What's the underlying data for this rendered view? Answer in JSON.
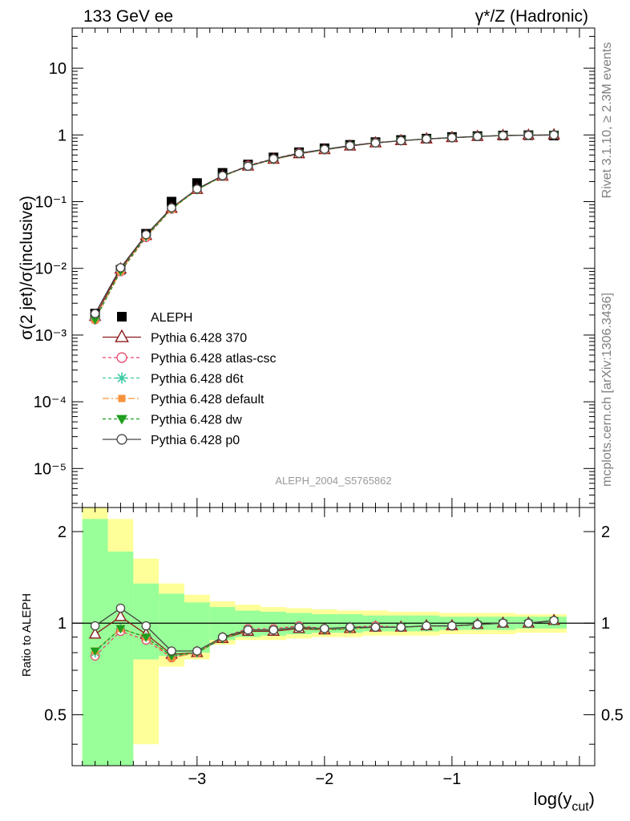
{
  "header": {
    "left": "133 GeV ee",
    "right": "γ*/Z (Hadronic)"
  },
  "side": {
    "top": "Rivet 3.1.10, ≥ 2.3M events",
    "bottom": "mcplots.cern.ch [arXiv:1306.3436]"
  },
  "watermark": "ALEPH_2004_S5765862",
  "chart_data": [
    {
      "type": "line",
      "ylabel": "σ(2 jet)/σ(inclusive)",
      "xlabel": "log(y_cut)",
      "xlim": [
        -3.98,
        0.12
      ],
      "ylim": [
        2.6e-06,
        40
      ],
      "yscale": "log",
      "ytick_labels": [
        "10",
        "1",
        "10⁻¹",
        "10⁻²",
        "10⁻³",
        "10⁻⁴",
        "10⁻⁵"
      ],
      "x": [
        -3.8,
        -3.6,
        -3.4,
        -3.2,
        -3.0,
        -2.8,
        -2.6,
        -2.4,
        -2.2,
        -2.0,
        -1.8,
        -1.6,
        -1.4,
        -1.2,
        -1.0,
        -0.8,
        -0.6,
        -0.4,
        -0.2
      ],
      "legend_position": "left-center",
      "series": [
        {
          "name": "ALEPH",
          "color": "#000000",
          "marker": "square",
          "values": [
            0.0021,
            0.0095,
            0.033,
            0.1,
            0.19,
            0.27,
            0.36,
            0.46,
            0.55,
            0.63,
            0.71,
            0.78,
            0.84,
            0.88,
            0.93,
            0.96,
            0.98,
            0.99,
            0.98
          ]
        },
        {
          "name": "Pythia 6.428 370",
          "color": "#8b1a1a",
          "marker": "triangle",
          "dash": "",
          "values": [
            0.0019,
            0.0098,
            0.031,
            0.079,
            0.152,
            0.24,
            0.34,
            0.43,
            0.52,
            0.6,
            0.68,
            0.76,
            0.82,
            0.87,
            0.91,
            0.95,
            0.98,
            0.99,
            1.0
          ]
        },
        {
          "name": "Pythia 6.428 atlas-csc",
          "color": "#e8476b",
          "marker": "circle-open",
          "dash": "4,3",
          "values": [
            0.0017,
            0.0089,
            0.029,
            0.077,
            0.153,
            0.24,
            0.35,
            0.44,
            0.54,
            0.6,
            0.69,
            0.77,
            0.82,
            0.87,
            0.91,
            0.95,
            0.98,
            0.99,
            1.0
          ]
        },
        {
          "name": "Pythia 6.428 d6t",
          "color": "#3cc9a3",
          "marker": "star",
          "dash": "4,3",
          "values": [
            0.0017,
            0.0091,
            0.03,
            0.078,
            0.152,
            0.24,
            0.34,
            0.43,
            0.53,
            0.6,
            0.69,
            0.76,
            0.82,
            0.87,
            0.91,
            0.95,
            0.98,
            0.99,
            1.0
          ]
        },
        {
          "name": "Pythia 6.428 default",
          "color": "#f7923a",
          "marker": "square-filled",
          "dash": "8,3,2,3",
          "values": [
            0.0017,
            0.0091,
            0.03,
            0.077,
            0.152,
            0.24,
            0.34,
            0.43,
            0.53,
            0.6,
            0.69,
            0.76,
            0.82,
            0.87,
            0.91,
            0.95,
            0.98,
            0.99,
            1.0
          ]
        },
        {
          "name": "Pythia 6.428 dw",
          "color": "#1f9e1f",
          "marker": "triangle-down",
          "dash": "4,3",
          "values": [
            0.0017,
            0.0091,
            0.03,
            0.078,
            0.151,
            0.24,
            0.34,
            0.43,
            0.53,
            0.6,
            0.69,
            0.76,
            0.82,
            0.87,
            0.91,
            0.95,
            0.98,
            0.99,
            1.0
          ]
        },
        {
          "name": "Pythia 6.428 p0",
          "color": "#444444",
          "marker": "circle-open",
          "dash": "",
          "values": [
            0.0021,
            0.0102,
            0.032,
            0.081,
            0.155,
            0.245,
            0.34,
            0.44,
            0.53,
            0.61,
            0.69,
            0.76,
            0.82,
            0.87,
            0.91,
            0.95,
            0.98,
            0.99,
            1.0
          ]
        }
      ]
    },
    {
      "type": "line",
      "ylabel": "Ratio to ALEPH",
      "xlabel": "log(y_cut)",
      "xlim": [
        -3.98,
        0.12
      ],
      "ylim": [
        0.34,
        2.4
      ],
      "yscale": "log",
      "yticks": [
        0.5,
        1,
        2
      ],
      "ytick_labels": [
        "0.5",
        "1",
        "2"
      ],
      "xticks": [
        -3,
        -2,
        -1
      ],
      "xtick_labels": [
        "−3",
        "−2",
        "−1"
      ],
      "bin_edges": [
        -3.9,
        -3.7,
        -3.5,
        -3.3,
        -3.1,
        -2.9,
        -2.7,
        -2.5,
        -2.3,
        -2.1,
        -1.9,
        -1.7,
        -1.5,
        -1.3,
        -1.1,
        -0.9,
        -0.7,
        -0.5,
        -0.3,
        -0.1
      ],
      "band_yellow": {
        "lo": [
          0.3,
          0.3,
          0.4,
          0.72,
          0.76,
          0.85,
          0.88,
          0.88,
          0.89,
          0.9,
          0.9,
          0.91,
          0.91,
          0.91,
          0.92,
          0.92,
          0.92,
          0.93,
          0.93
        ],
        "hi": [
          3.5,
          2.2,
          1.63,
          1.35,
          1.24,
          1.18,
          1.15,
          1.13,
          1.12,
          1.11,
          1.1,
          1.1,
          1.09,
          1.09,
          1.08,
          1.08,
          1.08,
          1.07,
          1.07
        ]
      },
      "band_green": {
        "lo": [
          0.3,
          0.3,
          0.76,
          0.78,
          0.8,
          0.88,
          0.9,
          0.91,
          0.92,
          0.93,
          0.93,
          0.94,
          0.94,
          0.94,
          0.95,
          0.95,
          0.95,
          0.96,
          0.96
        ],
        "hi": [
          2.2,
          1.72,
          1.35,
          1.25,
          1.17,
          1.13,
          1.1,
          1.09,
          1.08,
          1.07,
          1.07,
          1.06,
          1.06,
          1.06,
          1.05,
          1.05,
          1.05,
          1.05,
          1.05
        ]
      },
      "series": [
        {
          "name": "Pythia 6.428 370",
          "color": "#8b1a1a",
          "marker": "triangle",
          "dash": "",
          "values": [
            0.92,
            1.05,
            0.92,
            0.79,
            0.8,
            0.89,
            0.94,
            0.94,
            0.96,
            0.95,
            0.96,
            0.97,
            0.97,
            0.98,
            0.98,
            0.99,
            1.0,
            1.0,
            1.02
          ]
        },
        {
          "name": "Pythia 6.428 atlas-csc",
          "color": "#e8476b",
          "marker": "circle-open",
          "dash": "4,3",
          "values": [
            0.78,
            0.94,
            0.88,
            0.77,
            0.8,
            0.9,
            0.96,
            0.96,
            0.98,
            0.96,
            0.97,
            0.98,
            0.97,
            0.98,
            0.98,
            0.99,
            1.0,
            1.0,
            1.02
          ]
        },
        {
          "name": "Pythia 6.428 d6t",
          "color": "#3cc9a3",
          "marker": "star",
          "dash": "4,3",
          "values": [
            0.8,
            0.96,
            0.9,
            0.78,
            0.8,
            0.89,
            0.95,
            0.95,
            0.97,
            0.95,
            0.96,
            0.97,
            0.97,
            0.98,
            0.98,
            0.99,
            1.0,
            1.0,
            1.02
          ]
        },
        {
          "name": "Pythia 6.428 default",
          "color": "#f7923a",
          "marker": "square-filled",
          "dash": "8,3,2,3",
          "values": [
            0.81,
            0.96,
            0.9,
            0.77,
            0.8,
            0.89,
            0.95,
            0.95,
            0.97,
            0.95,
            0.96,
            0.97,
            0.97,
            0.98,
            0.98,
            0.99,
            1.0,
            1.0,
            1.02
          ]
        },
        {
          "name": "Pythia 6.428 dw",
          "color": "#1f9e1f",
          "marker": "triangle-down",
          "dash": "4,3",
          "values": [
            0.81,
            0.96,
            0.9,
            0.78,
            0.8,
            0.89,
            0.95,
            0.95,
            0.97,
            0.95,
            0.96,
            0.97,
            0.97,
            0.98,
            0.98,
            0.99,
            1.0,
            1.0,
            1.02
          ]
        },
        {
          "name": "Pythia 6.428 p0",
          "color": "#444444",
          "marker": "circle-open",
          "dash": "",
          "values": [
            0.98,
            1.12,
            0.98,
            0.81,
            0.81,
            0.9,
            0.95,
            0.95,
            0.97,
            0.96,
            0.97,
            0.97,
            0.97,
            0.98,
            0.98,
            0.99,
            1.0,
            1.0,
            1.02
          ]
        }
      ]
    }
  ]
}
